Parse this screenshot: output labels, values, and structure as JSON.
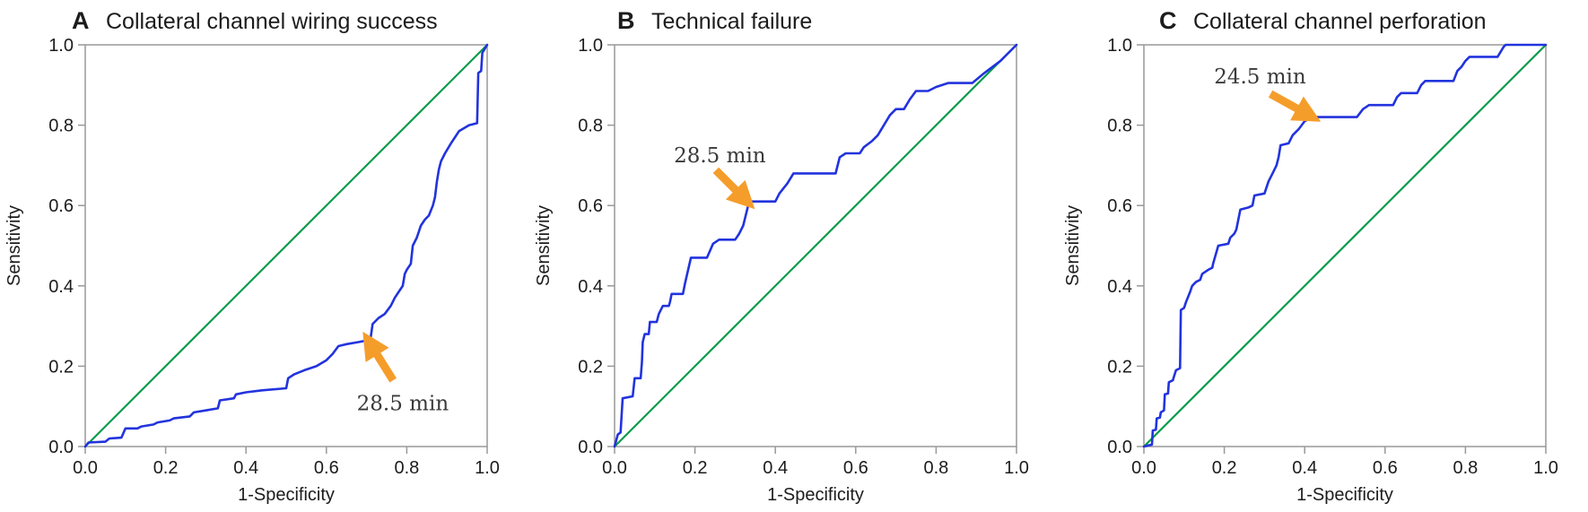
{
  "figure": {
    "background": "#ffffff",
    "colors": {
      "roc_curve": "#2233dd",
      "reference_line": "#0a9b4b",
      "arrow": "#f59d2b",
      "frame": "#999999",
      "text": "#1c1c1c",
      "annotation_text": "#3a3a3a"
    },
    "axis": {
      "x_label": "1-Specificity",
      "y_label": "Sensitivity",
      "x_ticks": [
        "0.0",
        "0.2",
        "0.4",
        "0.6",
        "0.8",
        "1.0"
      ],
      "y_ticks": [
        "0.0",
        "0.2",
        "0.4",
        "0.6",
        "0.8",
        "1.0"
      ]
    }
  },
  "chart_data": [
    {
      "type": "line",
      "panel_letter": "A",
      "title": "Collateral channel wiring success",
      "xlabel": "1-Specificity",
      "ylabel": "Sensitivity",
      "xlim": [
        0,
        1
      ],
      "ylim": [
        0,
        1
      ],
      "xticks": [
        0,
        0.2,
        0.4,
        0.6,
        0.8,
        1.0
      ],
      "yticks": [
        0,
        0.2,
        0.4,
        0.6,
        0.8,
        1.0
      ],
      "grid": false,
      "legend": "none",
      "series": [
        {
          "key": "roc-curve",
          "name": "ROC curve",
          "color": "#2233dd",
          "points": [
            [
              0,
              0
            ],
            [
              0.008,
              0.01
            ],
            [
              0.05,
              0.012
            ],
            [
              0.06,
              0.02
            ],
            [
              0.09,
              0.022
            ],
            [
              0.1,
              0.045
            ],
            [
              0.13,
              0.045
            ],
            [
              0.14,
              0.05
            ],
            [
              0.17,
              0.055
            ],
            [
              0.18,
              0.06
            ],
            [
              0.21,
              0.065
            ],
            [
              0.22,
              0.07
            ],
            [
              0.26,
              0.075
            ],
            [
              0.27,
              0.085
            ],
            [
              0.3,
              0.09
            ],
            [
              0.33,
              0.095
            ],
            [
              0.335,
              0.115
            ],
            [
              0.37,
              0.12
            ],
            [
              0.375,
              0.13
            ],
            [
              0.4,
              0.135
            ],
            [
              0.44,
              0.14
            ],
            [
              0.5,
              0.145
            ],
            [
              0.505,
              0.17
            ],
            [
              0.52,
              0.18
            ],
            [
              0.545,
              0.19
            ],
            [
              0.56,
              0.195
            ],
            [
              0.575,
              0.2
            ],
            [
              0.6,
              0.215
            ],
            [
              0.615,
              0.23
            ],
            [
              0.63,
              0.25
            ],
            [
              0.65,
              0.255
            ],
            [
              0.68,
              0.26
            ],
            [
              0.705,
              0.265
            ],
            [
              0.71,
              0.27
            ],
            [
              0.715,
              0.305
            ],
            [
              0.73,
              0.32
            ],
            [
              0.745,
              0.33
            ],
            [
              0.76,
              0.35
            ],
            [
              0.77,
              0.37
            ],
            [
              0.78,
              0.385
            ],
            [
              0.79,
              0.4
            ],
            [
              0.795,
              0.43
            ],
            [
              0.8,
              0.44
            ],
            [
              0.81,
              0.455
            ],
            [
              0.815,
              0.5
            ],
            [
              0.825,
              0.52
            ],
            [
              0.835,
              0.55
            ],
            [
              0.845,
              0.565
            ],
            [
              0.855,
              0.575
            ],
            [
              0.865,
              0.6
            ],
            [
              0.87,
              0.62
            ],
            [
              0.875,
              0.66
            ],
            [
              0.88,
              0.69
            ],
            [
              0.885,
              0.71
            ],
            [
              0.895,
              0.73
            ],
            [
              0.91,
              0.755
            ],
            [
              0.93,
              0.785
            ],
            [
              0.955,
              0.8
            ],
            [
              0.975,
              0.805
            ],
            [
              0.978,
              0.93
            ],
            [
              0.985,
              0.935
            ],
            [
              0.988,
              0.98
            ],
            [
              1,
              1
            ]
          ]
        },
        {
          "key": "reference-line",
          "name": "Reference diagonal",
          "color": "#0a9b4b",
          "points": [
            [
              0,
              0
            ],
            [
              1,
              1
            ]
          ]
        }
      ],
      "annotation": {
        "label": "28.5 min",
        "cutoff_point": [
          0.71,
          0.27
        ],
        "arrow_tail": [
          0.766,
          0.165
        ],
        "arrow_tip": [
          0.716,
          0.245
        ],
        "label_pos": [
          0.79,
          0.108
        ]
      }
    },
    {
      "type": "line",
      "panel_letter": "B",
      "title": "Technical failure",
      "xlabel": "1-Specificity",
      "ylabel": "Sensitivity",
      "xlim": [
        0,
        1
      ],
      "ylim": [
        0,
        1
      ],
      "xticks": [
        0,
        0.2,
        0.4,
        0.6,
        0.8,
        1.0
      ],
      "yticks": [
        0,
        0.2,
        0.4,
        0.6,
        0.8,
        1.0
      ],
      "grid": false,
      "legend": "none",
      "series": [
        {
          "key": "roc-curve",
          "name": "ROC curve",
          "color": "#2233dd",
          "points": [
            [
              0,
              0
            ],
            [
              0.008,
              0.03
            ],
            [
              0.015,
              0.035
            ],
            [
              0.02,
              0.12
            ],
            [
              0.045,
              0.125
            ],
            [
              0.05,
              0.17
            ],
            [
              0.065,
              0.17
            ],
            [
              0.068,
              0.21
            ],
            [
              0.07,
              0.26
            ],
            [
              0.075,
              0.28
            ],
            [
              0.085,
              0.28
            ],
            [
              0.088,
              0.31
            ],
            [
              0.105,
              0.31
            ],
            [
              0.11,
              0.33
            ],
            [
              0.12,
              0.35
            ],
            [
              0.135,
              0.35
            ],
            [
              0.138,
              0.36
            ],
            [
              0.142,
              0.38
            ],
            [
              0.17,
              0.38
            ],
            [
              0.175,
              0.405
            ],
            [
              0.19,
              0.47
            ],
            [
              0.23,
              0.47
            ],
            [
              0.245,
              0.505
            ],
            [
              0.26,
              0.515
            ],
            [
              0.3,
              0.515
            ],
            [
              0.31,
              0.53
            ],
            [
              0.32,
              0.55
            ],
            [
              0.33,
              0.59
            ],
            [
              0.335,
              0.61
            ],
            [
              0.4,
              0.61
            ],
            [
              0.41,
              0.63
            ],
            [
              0.43,
              0.655
            ],
            [
              0.445,
              0.68
            ],
            [
              0.55,
              0.68
            ],
            [
              0.56,
              0.72
            ],
            [
              0.575,
              0.73
            ],
            [
              0.61,
              0.73
            ],
            [
              0.62,
              0.745
            ],
            [
              0.64,
              0.76
            ],
            [
              0.655,
              0.775
            ],
            [
              0.67,
              0.8
            ],
            [
              0.685,
              0.825
            ],
            [
              0.7,
              0.84
            ],
            [
              0.72,
              0.84
            ],
            [
              0.735,
              0.865
            ],
            [
              0.75,
              0.885
            ],
            [
              0.78,
              0.885
            ],
            [
              0.8,
              0.895
            ],
            [
              0.83,
              0.905
            ],
            [
              0.89,
              0.905
            ],
            [
              0.92,
              0.93
            ],
            [
              0.96,
              0.96
            ],
            [
              1,
              1
            ]
          ]
        },
        {
          "key": "reference-line",
          "name": "Reference diagonal",
          "color": "#0a9b4b",
          "points": [
            [
              0,
              0
            ],
            [
              1,
              1
            ]
          ]
        }
      ],
      "annotation": {
        "label": "28.5 min",
        "cutoff_point": [
          0.335,
          0.61
        ],
        "arrow_tail": [
          0.252,
          0.688
        ],
        "arrow_tip": [
          0.315,
          0.625
        ],
        "label_pos": [
          0.262,
          0.725
        ]
      }
    },
    {
      "type": "line",
      "panel_letter": "C",
      "title": "Collateral channel perforation",
      "xlabel": "1-Specificity",
      "ylabel": "Sensitivity",
      "xlim": [
        0,
        1
      ],
      "ylim": [
        0,
        1
      ],
      "xticks": [
        0,
        0.2,
        0.4,
        0.6,
        0.8,
        1.0
      ],
      "yticks": [
        0,
        0.2,
        0.4,
        0.6,
        0.8,
        1.0
      ],
      "grid": false,
      "legend": "none",
      "series": [
        {
          "key": "roc-curve",
          "name": "ROC curve",
          "color": "#2233dd",
          "points": [
            [
              0,
              0
            ],
            [
              0.02,
              0.005
            ],
            [
              0.022,
              0.04
            ],
            [
              0.03,
              0.042
            ],
            [
              0.032,
              0.07
            ],
            [
              0.04,
              0.072
            ],
            [
              0.042,
              0.085
            ],
            [
              0.05,
              0.09
            ],
            [
              0.052,
              0.13
            ],
            [
              0.06,
              0.132
            ],
            [
              0.062,
              0.16
            ],
            [
              0.072,
              0.165
            ],
            [
              0.075,
              0.175
            ],
            [
              0.08,
              0.19
            ],
            [
              0.09,
              0.195
            ],
            [
              0.092,
              0.34
            ],
            [
              0.1,
              0.345
            ],
            [
              0.105,
              0.36
            ],
            [
              0.115,
              0.385
            ],
            [
              0.12,
              0.4
            ],
            [
              0.13,
              0.41
            ],
            [
              0.14,
              0.415
            ],
            [
              0.145,
              0.43
            ],
            [
              0.16,
              0.44
            ],
            [
              0.17,
              0.445
            ],
            [
              0.172,
              0.455
            ],
            [
              0.185,
              0.5
            ],
            [
              0.21,
              0.505
            ],
            [
              0.215,
              0.52
            ],
            [
              0.225,
              0.53
            ],
            [
              0.23,
              0.54
            ],
            [
              0.24,
              0.59
            ],
            [
              0.26,
              0.595
            ],
            [
              0.27,
              0.6
            ],
            [
              0.275,
              0.625
            ],
            [
              0.3,
              0.63
            ],
            [
              0.31,
              0.66
            ],
            [
              0.32,
              0.68
            ],
            [
              0.33,
              0.7
            ],
            [
              0.335,
              0.72
            ],
            [
              0.34,
              0.75
            ],
            [
              0.36,
              0.755
            ],
            [
              0.37,
              0.775
            ],
            [
              0.385,
              0.79
            ],
            [
              0.4,
              0.81
            ],
            [
              0.42,
              0.82
            ],
            [
              0.53,
              0.82
            ],
            [
              0.545,
              0.84
            ],
            [
              0.56,
              0.85
            ],
            [
              0.62,
              0.85
            ],
            [
              0.63,
              0.87
            ],
            [
              0.64,
              0.88
            ],
            [
              0.68,
              0.88
            ],
            [
              0.69,
              0.9
            ],
            [
              0.7,
              0.91
            ],
            [
              0.77,
              0.91
            ],
            [
              0.78,
              0.935
            ],
            [
              0.79,
              0.945
            ],
            [
              0.8,
              0.96
            ],
            [
              0.81,
              0.97
            ],
            [
              0.88,
              0.97
            ],
            [
              0.895,
              0.995
            ],
            [
              0.9,
              1.0
            ],
            [
              1,
              1
            ]
          ]
        },
        {
          "key": "reference-line",
          "name": "Reference diagonal",
          "color": "#0a9b4b",
          "points": [
            [
              0,
              0
            ],
            [
              1,
              1
            ]
          ]
        }
      ],
      "annotation": {
        "label": "24.5 min",
        "cutoff_point": [
          0.42,
          0.82
        ],
        "arrow_tail": [
          0.315,
          0.878
        ],
        "arrow_tip": [
          0.398,
          0.832
        ],
        "label_pos": [
          0.289,
          0.922
        ]
      }
    }
  ]
}
